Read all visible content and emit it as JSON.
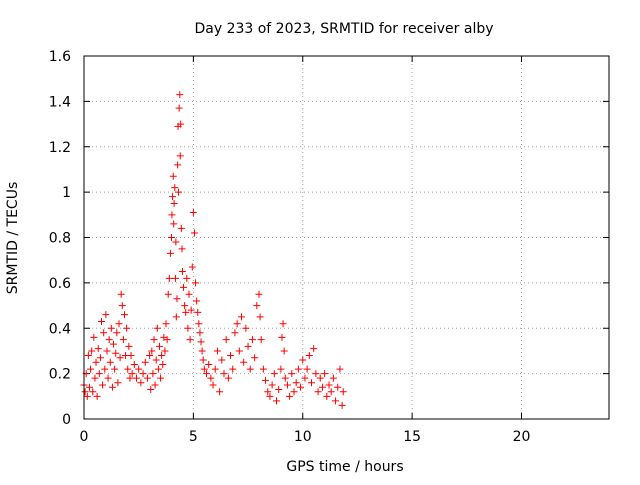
{
  "chart_data": {
    "type": "scatter",
    "title": "Day 233 of 2023, SRMTID for receiver alby",
    "xlabel": "GPS time / hours",
    "ylabel": "SRMTID / TECUs",
    "xlim": [
      0,
      24
    ],
    "ylim": [
      0,
      1.6
    ],
    "xticks": [
      0,
      5,
      10,
      15,
      20
    ],
    "xtick_labels": [
      "0",
      "5",
      "10",
      "15",
      "20"
    ],
    "yticks": [
      0,
      0.2,
      0.4,
      0.6,
      0.8,
      1.0,
      1.2,
      1.4,
      1.6
    ],
    "ytick_labels": [
      "0",
      "0.2",
      "0.4",
      "0.6",
      "0.8",
      "1",
      "1.2",
      "1.4",
      "1.6"
    ],
    "grid": true,
    "marker": "+",
    "series": [
      {
        "name": "SRMTID",
        "color": "#ff0000",
        "points": [
          [
            0.0,
            0.15
          ],
          [
            0.05,
            0.12
          ],
          [
            0.1,
            0.2
          ],
          [
            0.15,
            0.1
          ],
          [
            0.2,
            0.28
          ],
          [
            0.25,
            0.14
          ],
          [
            0.3,
            0.22
          ],
          [
            0.35,
            0.3
          ],
          [
            0.4,
            0.12
          ],
          [
            0.45,
            0.36
          ],
          [
            0.5,
            0.18
          ],
          [
            0.55,
            0.25
          ],
          [
            0.6,
            0.1
          ],
          [
            0.65,
            0.31
          ],
          [
            0.7,
            0.2
          ],
          [
            0.75,
            0.27
          ],
          [
            0.8,
            0.43
          ],
          [
            0.85,
            0.15
          ],
          [
            0.9,
            0.38
          ],
          [
            0.95,
            0.22
          ],
          [
            1.0,
            0.46
          ],
          [
            1.05,
            0.3
          ],
          [
            1.1,
            0.18
          ],
          [
            1.15,
            0.35
          ],
          [
            1.2,
            0.25
          ],
          [
            1.25,
            0.4
          ],
          [
            1.3,
            0.14
          ],
          [
            1.35,
            0.33
          ],
          [
            1.4,
            0.22
          ],
          [
            1.45,
            0.29
          ],
          [
            1.5,
            0.38
          ],
          [
            1.55,
            0.16
          ],
          [
            1.6,
            0.42
          ],
          [
            1.65,
            0.27
          ],
          [
            1.7,
            0.55
          ],
          [
            1.75,
            0.5
          ],
          [
            1.8,
            0.35
          ],
          [
            1.85,
            0.46
          ],
          [
            1.9,
            0.28
          ],
          [
            1.95,
            0.4
          ],
          [
            2.0,
            0.22
          ],
          [
            2.05,
            0.32
          ],
          [
            2.1,
            0.18
          ],
          [
            2.15,
            0.28
          ],
          [
            2.2,
            0.2
          ],
          [
            2.3,
            0.24
          ],
          [
            2.4,
            0.18
          ],
          [
            2.5,
            0.22
          ],
          [
            2.6,
            0.16
          ],
          [
            2.7,
            0.2
          ],
          [
            2.8,
            0.25
          ],
          [
            2.9,
            0.18
          ],
          [
            3.0,
            0.28
          ],
          [
            3.05,
            0.13
          ],
          [
            3.1,
            0.3
          ],
          [
            3.15,
            0.2
          ],
          [
            3.2,
            0.35
          ],
          [
            3.25,
            0.15
          ],
          [
            3.3,
            0.26
          ],
          [
            3.35,
            0.4
          ],
          [
            3.4,
            0.22
          ],
          [
            3.45,
            0.32
          ],
          [
            3.5,
            0.18
          ],
          [
            3.55,
            0.28
          ],
          [
            3.6,
            0.24
          ],
          [
            3.65,
            0.36
          ],
          [
            3.7,
            0.3
          ],
          [
            3.75,
            0.42
          ],
          [
            3.8,
            0.35
          ],
          [
            3.85,
            0.55
          ],
          [
            3.9,
            0.62
          ],
          [
            3.95,
            0.73
          ],
          [
            4.0,
            0.8
          ],
          [
            4.02,
            0.9
          ],
          [
            4.05,
            0.98
          ],
          [
            4.08,
            1.07
          ],
          [
            4.1,
            0.86
          ],
          [
            4.12,
            0.95
          ],
          [
            4.15,
            1.02
          ],
          [
            4.18,
            0.62
          ],
          [
            4.2,
            0.78
          ],
          [
            4.22,
            0.45
          ],
          [
            4.25,
            0.53
          ],
          [
            4.28,
            1.12
          ],
          [
            4.3,
            1.29
          ],
          [
            4.32,
            1.0
          ],
          [
            4.35,
            1.37
          ],
          [
            4.38,
            1.43
          ],
          [
            4.4,
            1.16
          ],
          [
            4.42,
            1.3
          ],
          [
            4.45,
            0.84
          ],
          [
            4.48,
            0.75
          ],
          [
            4.5,
            0.65
          ],
          [
            4.55,
            0.58
          ],
          [
            4.6,
            0.5
          ],
          [
            4.65,
            0.47
          ],
          [
            4.7,
            0.62
          ],
          [
            4.75,
            0.4
          ],
          [
            4.8,
            0.55
          ],
          [
            4.85,
            0.35
          ],
          [
            4.9,
            0.48
          ],
          [
            4.95,
            0.67
          ],
          [
            5.0,
            0.91
          ],
          [
            5.05,
            0.82
          ],
          [
            5.1,
            0.6
          ],
          [
            5.15,
            0.52
          ],
          [
            5.2,
            0.47
          ],
          [
            5.25,
            0.42
          ],
          [
            5.3,
            0.38
          ],
          [
            5.35,
            0.34
          ],
          [
            5.4,
            0.3
          ],
          [
            5.45,
            0.26
          ],
          [
            5.5,
            0.22
          ],
          [
            5.6,
            0.2
          ],
          [
            5.7,
            0.24
          ],
          [
            5.8,
            0.18
          ],
          [
            5.9,
            0.15
          ],
          [
            6.0,
            0.22
          ],
          [
            6.1,
            0.3
          ],
          [
            6.2,
            0.12
          ],
          [
            6.3,
            0.26
          ],
          [
            6.4,
            0.2
          ],
          [
            6.5,
            0.35
          ],
          [
            6.6,
            0.18
          ],
          [
            6.7,
            0.28
          ],
          [
            6.8,
            0.22
          ],
          [
            6.9,
            0.38
          ],
          [
            7.0,
            0.42
          ],
          [
            7.1,
            0.3
          ],
          [
            7.2,
            0.45
          ],
          [
            7.3,
            0.25
          ],
          [
            7.4,
            0.4
          ],
          [
            7.5,
            0.32
          ],
          [
            7.6,
            0.22
          ],
          [
            7.7,
            0.35
          ],
          [
            7.8,
            0.27
          ],
          [
            7.9,
            0.5
          ],
          [
            8.0,
            0.55
          ],
          [
            8.05,
            0.45
          ],
          [
            8.1,
            0.35
          ],
          [
            8.2,
            0.22
          ],
          [
            8.3,
            0.17
          ],
          [
            8.4,
            0.12
          ],
          [
            8.5,
            0.1
          ],
          [
            8.6,
            0.15
          ],
          [
            8.7,
            0.2
          ],
          [
            8.8,
            0.08
          ],
          [
            8.9,
            0.13
          ],
          [
            9.0,
            0.22
          ],
          [
            9.05,
            0.36
          ],
          [
            9.1,
            0.42
          ],
          [
            9.15,
            0.3
          ],
          [
            9.2,
            0.18
          ],
          [
            9.3,
            0.15
          ],
          [
            9.4,
            0.1
          ],
          [
            9.5,
            0.2
          ],
          [
            9.6,
            0.12
          ],
          [
            9.7,
            0.16
          ],
          [
            9.8,
            0.22
          ],
          [
            9.9,
            0.14
          ],
          [
            10.0,
            0.26
          ],
          [
            10.1,
            0.18
          ],
          [
            10.2,
            0.22
          ],
          [
            10.3,
            0.28
          ],
          [
            10.4,
            0.16
          ],
          [
            10.5,
            0.31
          ],
          [
            10.6,
            0.2
          ],
          [
            10.7,
            0.12
          ],
          [
            10.8,
            0.18
          ],
          [
            10.9,
            0.14
          ],
          [
            11.0,
            0.2
          ],
          [
            11.1,
            0.1
          ],
          [
            11.2,
            0.15
          ],
          [
            11.3,
            0.12
          ],
          [
            11.4,
            0.18
          ],
          [
            11.5,
            0.08
          ],
          [
            11.6,
            0.14
          ],
          [
            11.7,
            0.22
          ],
          [
            11.8,
            0.06
          ],
          [
            11.85,
            0.12
          ]
        ]
      }
    ]
  }
}
